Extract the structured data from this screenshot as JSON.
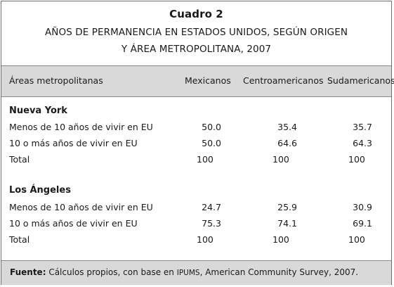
{
  "title": {
    "label": "Cuadro 2",
    "line1": "AÑOS DE PERMANENCIA EN ESTADOS UNIDOS, SEGÚN ORIGEN",
    "line2": "Y ÁREA METROPOLITANA, 2007"
  },
  "columns": {
    "area": "Áreas metropolitanas",
    "mex": "Mexicanos",
    "centro": "Centroamericanos",
    "sud": "Sudamericanos"
  },
  "sections": [
    {
      "name": "Nueva York",
      "rows": [
        {
          "label": "Menos de 10 años de vivir en EU",
          "mex": "50.0",
          "centro": "35.4",
          "sud": "35.7"
        },
        {
          "label": "10 o más años de vivir en EU",
          "mex": "50.0",
          "centro": "64.6",
          "sud": "64.3"
        },
        {
          "label": "Total",
          "mex": "100",
          "centro": "100",
          "sud": "100"
        }
      ]
    },
    {
      "name": "Los Ángeles",
      "rows": [
        {
          "label": "Menos de 10 años de vivir en EU",
          "mex": "24.7",
          "centro": "25.9",
          "sud": "30.9"
        },
        {
          "label": "10 o más años de vivir en EU",
          "mex": "75.3",
          "centro": "74.1",
          "sud": "69.1"
        },
        {
          "label": "Total",
          "mex": "100",
          "centro": "100",
          "sud": "100"
        }
      ]
    }
  ],
  "footer": {
    "label": "Fuente:",
    "text_before": " Cálculos propios, con base en ",
    "abbr": "IPUMS",
    "text_after": ", American Community Survey, 2007."
  }
}
